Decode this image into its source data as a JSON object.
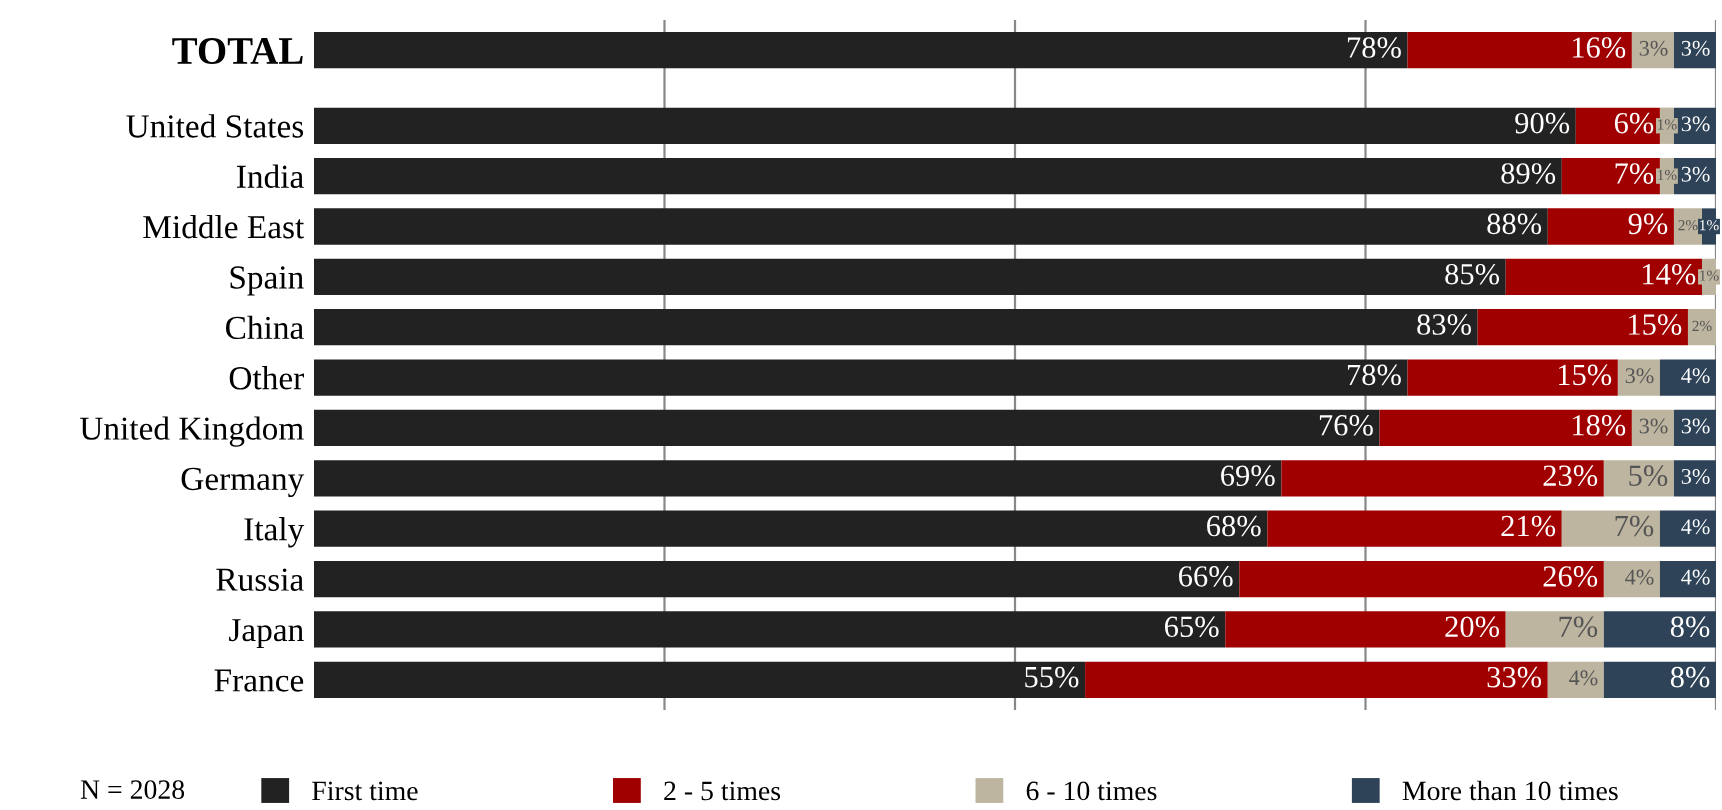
{
  "chart_data": {
    "type": "bar",
    "orientation": "horizontal",
    "stacked": true,
    "categories": [
      "TOTAL",
      "United States",
      "India",
      "Middle East",
      "Spain",
      "China",
      "Other",
      "United Kingdom",
      "Germany",
      "Italy",
      "Russia",
      "Japan",
      "France"
    ],
    "series": [
      {
        "name": "First time",
        "color": "#222222",
        "values": [
          78,
          90,
          89,
          88,
          85,
          83,
          78,
          76,
          69,
          68,
          66,
          65,
          55
        ],
        "value_labels": [
          "78%",
          "90%",
          "89%",
          "88%",
          "85%",
          "83%",
          "78%",
          "76%",
          "69%",
          "68%",
          "66%",
          "65%",
          "55%"
        ]
      },
      {
        "name": "2 - 5 times",
        "color": "#a00000",
        "values": [
          16,
          6,
          7,
          9,
          14,
          15,
          15,
          18,
          23,
          21,
          26,
          20,
          33
        ],
        "value_labels": [
          "16%",
          "6%",
          "7%",
          "9%",
          "14%",
          "15%",
          "15%",
          "18%",
          "23%",
          "21%",
          "26%",
          "20%",
          "33%"
        ]
      },
      {
        "name": "6 - 10 times",
        "color": "#bdb5a0",
        "values": [
          3,
          1,
          1,
          2,
          1,
          2,
          3,
          3,
          5,
          7,
          4,
          7,
          4
        ],
        "value_labels": [
          "3%",
          "1%",
          "1%",
          "2%",
          "1%",
          "2%",
          "3%",
          "3%",
          "5%",
          "7%",
          "4%",
          "7%",
          "4%"
        ]
      },
      {
        "name": "More than 10 times",
        "color": "#2e4357",
        "values": [
          3,
          3,
          3,
          1,
          null,
          null,
          4,
          3,
          3,
          4,
          4,
          8,
          8
        ],
        "value_labels": [
          "3%",
          "3%",
          "3%",
          "1%",
          null,
          null,
          "4%",
          "3%",
          "3%",
          "4%",
          "4%",
          "8%",
          "8%"
        ]
      }
    ],
    "xlim": [
      0,
      100
    ],
    "xticks": [
      {
        "value": 25,
        "label": null
      },
      {
        "value": 50,
        "label": null
      },
      {
        "value": 75,
        "label": null
      },
      {
        "value": 100,
        "label": null
      }
    ],
    "grid": "x",
    "tick_labels": "y",
    "legend": "bottom",
    "annotations": [
      "N = 2028"
    ]
  }
}
